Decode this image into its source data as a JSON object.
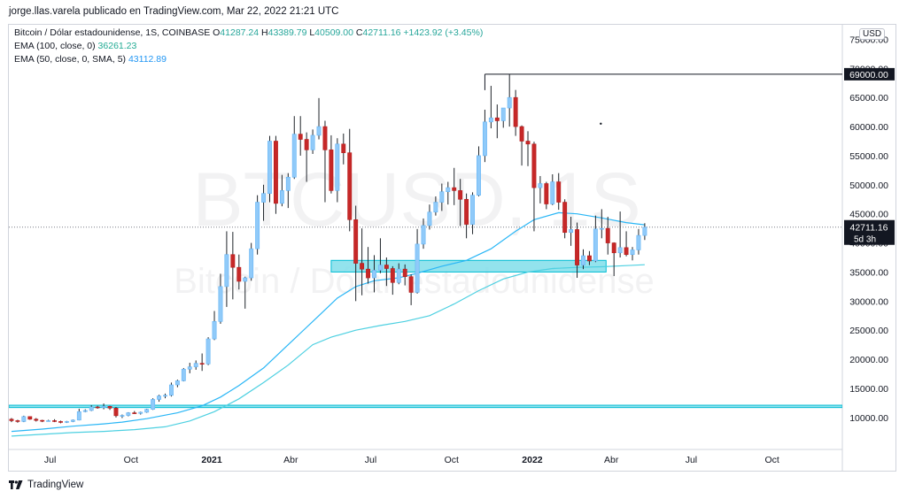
{
  "header": {
    "published_by": "jorge.llas.varela publicado en TradingView.com, Mar 22, 2022 21:21 UTC"
  },
  "legend": {
    "symbol": "Bitcoin / Dólar estadounidense, 1S, COINBASE",
    "o_label": "O",
    "o_value": "41287.24",
    "h_label": "H",
    "h_value": "43389.79",
    "l_label": "L",
    "l_value": "40509.00",
    "c_label": "C",
    "c_value": "42711.16",
    "change": "+1423.92 (+3.45%)",
    "ema100_label": "EMA (100, close, 0)",
    "ema100_value": "36261.23",
    "ema50_label": "EMA (50, close, 0, SMA, 5)",
    "ema50_value": "43112.89"
  },
  "currency": "USD",
  "watermark": {
    "symbol": "BTCUSD, 1S",
    "name": "Bitcoin / Dólar estadounidense"
  },
  "footer": {
    "brand": "TradingView"
  },
  "chart_data": {
    "type": "candlestick",
    "y_ticks": [
      10000,
      15000,
      20000,
      25000,
      30000,
      35000,
      40000,
      45000,
      50000,
      55000,
      60000,
      65000,
      70000,
      75000
    ],
    "y_tick_labels": [
      "10000.00",
      "15000.00",
      "20000.00",
      "25000.00",
      "30000.00",
      "35000.00",
      "40000.00",
      "45000.00",
      "50000.00",
      "55000.00",
      "60000.00",
      "65000.00",
      "70000.00",
      "75000.00"
    ],
    "ylim": [
      4500,
      77500
    ],
    "x_ticks": [
      {
        "label": "Jul",
        "date": "2020-07-01"
      },
      {
        "label": "Oct",
        "date": "2020-10-01"
      },
      {
        "label": "2021",
        "date": "2021-01-01"
      },
      {
        "label": "Abr",
        "date": "2021-04-01"
      },
      {
        "label": "Jul",
        "date": "2021-07-01"
      },
      {
        "label": "Oct",
        "date": "2021-10-01"
      },
      {
        "label": "2022",
        "date": "2022-01-01"
      },
      {
        "label": "Abr",
        "date": "2022-04-01"
      },
      {
        "label": "Jul",
        "date": "2022-07-01"
      },
      {
        "label": "Oct",
        "date": "2022-10-01"
      }
    ],
    "xlim": [
      "2020-05-15",
      "2022-12-20"
    ],
    "price_line": {
      "value": 42711.16,
      "label": "42711.16",
      "countdown": "5d 3h"
    },
    "high_line": {
      "value": 69000,
      "label": "69000.00",
      "from_date": "2021-11-08"
    },
    "support_zones": [
      {
        "from_date": "2021-05-17",
        "to_date": "2022-03-26",
        "low": 35000,
        "high": 37000
      },
      {
        "from_date": "2020-05-15",
        "to_date": "2022-12-20",
        "low": 11700,
        "high": 12100
      }
    ],
    "candle_start": "2020-05-18",
    "candles": [
      [
        9700,
        9900,
        9200,
        9450
      ],
      [
        9450,
        9600,
        9100,
        9300
      ],
      [
        9300,
        10300,
        9200,
        10150
      ],
      [
        10150,
        10200,
        9600,
        9700
      ],
      [
        9700,
        9900,
        9300,
        9500
      ],
      [
        9500,
        9600,
        9200,
        9400
      ],
      [
        9400,
        9600,
        9300,
        9450
      ],
      [
        9450,
        9700,
        9200,
        9300
      ],
      [
        9300,
        9450,
        9000,
        9200
      ],
      [
        9200,
        9400,
        9050,
        9300
      ],
      [
        9300,
        9650,
        9200,
        9550
      ],
      [
        9550,
        11500,
        9500,
        11000
      ],
      [
        11000,
        11400,
        10900,
        11200
      ],
      [
        11200,
        12100,
        11100,
        11800
      ],
      [
        11800,
        12000,
        11500,
        11700
      ],
      [
        11700,
        12400,
        11400,
        11900
      ],
      [
        11900,
        12000,
        11300,
        11600
      ],
      [
        11600,
        11800,
        10000,
        10300
      ],
      [
        10300,
        10500,
        9900,
        10350
      ],
      [
        10350,
        10900,
        10200,
        10800
      ],
      [
        10800,
        11100,
        10600,
        10700
      ],
      [
        10700,
        11000,
        10500,
        10900
      ],
      [
        10900,
        11500,
        10800,
        11400
      ],
      [
        11400,
        13300,
        11300,
        13100
      ],
      [
        13100,
        13900,
        12700,
        13700
      ],
      [
        13700,
        14100,
        13300,
        13800
      ],
      [
        13800,
        16000,
        13600,
        15600
      ],
      [
        15600,
        16500,
        15200,
        16300
      ],
      [
        16300,
        18500,
        16200,
        18300
      ],
      [
        18300,
        19400,
        17600,
        18700
      ],
      [
        18700,
        19800,
        18200,
        19300
      ],
      [
        19300,
        21000,
        18000,
        19200
      ],
      [
        19200,
        23800,
        19000,
        23500
      ],
      [
        23500,
        28300,
        23300,
        26500
      ],
      [
        26500,
        34700,
        26100,
        32500
      ],
      [
        32500,
        42000,
        29000,
        38000
      ],
      [
        38000,
        41900,
        30300,
        35800
      ],
      [
        35800,
        38000,
        32000,
        33400
      ],
      [
        33400,
        34200,
        28700,
        34000
      ],
      [
        34000,
        40000,
        33500,
        39000
      ],
      [
        39000,
        48200,
        38000,
        47000
      ],
      [
        47000,
        50000,
        43800,
        48500
      ],
      [
        48500,
        58400,
        47000,
        57500
      ],
      [
        57500,
        58400,
        45000,
        46800
      ],
      [
        46800,
        51700,
        46300,
        49000
      ],
      [
        49000,
        52000,
        46000,
        51300
      ],
      [
        51300,
        61800,
        51000,
        58700
      ],
      [
        58700,
        61800,
        55000,
        57800
      ],
      [
        57800,
        59000,
        50500,
        56000
      ],
      [
        56000,
        59500,
        55300,
        58500
      ],
      [
        58500,
        64900,
        57800,
        60000
      ],
      [
        60000,
        61000,
        47000,
        56000
      ],
      [
        56000,
        58500,
        48500,
        49000
      ],
      [
        49000,
        58000,
        47000,
        57000
      ],
      [
        57000,
        58800,
        53500,
        55500
      ],
      [
        55500,
        59600,
        42000,
        44000
      ],
      [
        44000,
        46400,
        30000,
        36500
      ],
      [
        36500,
        42500,
        31000,
        35500
      ],
      [
        35500,
        39300,
        33000,
        34000
      ],
      [
        34000,
        37900,
        31500,
        35300
      ],
      [
        35300,
        40800,
        34800,
        36200
      ],
      [
        36200,
        37500,
        32600,
        35600
      ],
      [
        35600,
        36000,
        31100,
        33200
      ],
      [
        33200,
        36500,
        32900,
        35500
      ],
      [
        35500,
        36300,
        32700,
        34200
      ],
      [
        34200,
        34600,
        29300,
        31500
      ],
      [
        31500,
        42400,
        31300,
        39800
      ],
      [
        39800,
        44200,
        39000,
        43000
      ],
      [
        43000,
        46600,
        42300,
        45300
      ],
      [
        45300,
        48000,
        44700,
        47000
      ],
      [
        47000,
        50200,
        45500,
        48800
      ],
      [
        48800,
        50500,
        46600,
        49500
      ],
      [
        49500,
        52900,
        46500,
        49000
      ],
      [
        49000,
        51000,
        42900,
        47500
      ],
      [
        47500,
        48500,
        40800,
        43200
      ],
      [
        43200,
        48700,
        41500,
        48200
      ],
      [
        48200,
        56600,
        48000,
        55000
      ],
      [
        55000,
        62900,
        53900,
        60800
      ],
      [
        60800,
        67000,
        59700,
        61500
      ],
      [
        61500,
        63800,
        58000,
        61000
      ],
      [
        61000,
        63000,
        59800,
        63200
      ],
      [
        63200,
        69000,
        60000,
        65000
      ],
      [
        65000,
        66300,
        58400,
        60000
      ],
      [
        60000,
        60200,
        53300,
        57500
      ],
      [
        57500,
        59200,
        53200,
        57000
      ],
      [
        57000,
        57400,
        42000,
        49500
      ],
      [
        49500,
        51500,
        46800,
        50200
      ],
      [
        50200,
        50500,
        45800,
        46700
      ],
      [
        46700,
        51800,
        46500,
        50500
      ],
      [
        50500,
        52000,
        45700,
        47000
      ],
      [
        47000,
        47500,
        40800,
        41800
      ],
      [
        41800,
        44500,
        39500,
        42300
      ],
      [
        42300,
        43500,
        34000,
        36200
      ],
      [
        36200,
        38900,
        35500,
        37800
      ],
      [
        37800,
        38600,
        36200,
        36900
      ],
      [
        36900,
        44700,
        36700,
        42400
      ],
      [
        42400,
        45800,
        40800,
        42500
      ],
      [
        42500,
        44500,
        38000,
        40000
      ],
      [
        40000,
        40100,
        34300,
        38300
      ],
      [
        38300,
        45400,
        37500,
        39200
      ],
      [
        39200,
        42000,
        37700,
        38000
      ],
      [
        38000,
        39300,
        37000,
        38800
      ],
      [
        38800,
        42400,
        38000,
        41287
      ],
      [
        41287,
        43390,
        40509,
        42711
      ]
    ],
    "ema50": [
      [
        0,
        7600
      ],
      [
        5,
        8000
      ],
      [
        10,
        8500
      ],
      [
        15,
        8900
      ],
      [
        18,
        9200
      ],
      [
        22,
        9800
      ],
      [
        27,
        10800
      ],
      [
        31,
        12000
      ],
      [
        34,
        13500
      ],
      [
        37,
        15500
      ],
      [
        41,
        18500
      ],
      [
        44,
        21500
      ],
      [
        47,
        24500
      ],
      [
        50,
        27500
      ],
      [
        53,
        30500
      ],
      [
        56,
        32500
      ],
      [
        59,
        33500
      ],
      [
        63,
        34000
      ],
      [
        66,
        34800
      ],
      [
        70,
        36000
      ],
      [
        74,
        37000
      ],
      [
        78,
        39000
      ],
      [
        82,
        42000
      ],
      [
        85,
        44000
      ],
      [
        89,
        45200
      ],
      [
        92,
        45000
      ],
      [
        96,
        44300
      ],
      [
        100,
        43500
      ],
      [
        103,
        43113
      ]
    ],
    "ema100": [
      [
        0,
        6800
      ],
      [
        5,
        7100
      ],
      [
        10,
        7400
      ],
      [
        15,
        7600
      ],
      [
        20,
        7900
      ],
      [
        25,
        8400
      ],
      [
        29,
        9400
      ],
      [
        33,
        11000
      ],
      [
        37,
        13200
      ],
      [
        41,
        16000
      ],
      [
        45,
        19000
      ],
      [
        49,
        22500
      ],
      [
        52,
        23800
      ],
      [
        56,
        25000
      ],
      [
        60,
        25800
      ],
      [
        64,
        26500
      ],
      [
        68,
        27500
      ],
      [
        72,
        29500
      ],
      [
        76,
        31800
      ],
      [
        80,
        33800
      ],
      [
        84,
        35000
      ],
      [
        88,
        35600
      ],
      [
        92,
        35800
      ],
      [
        96,
        35900
      ],
      [
        100,
        36100
      ],
      [
        103,
        36261
      ]
    ],
    "dot": {
      "date": "2022-03-20",
      "value": 60500
    }
  }
}
